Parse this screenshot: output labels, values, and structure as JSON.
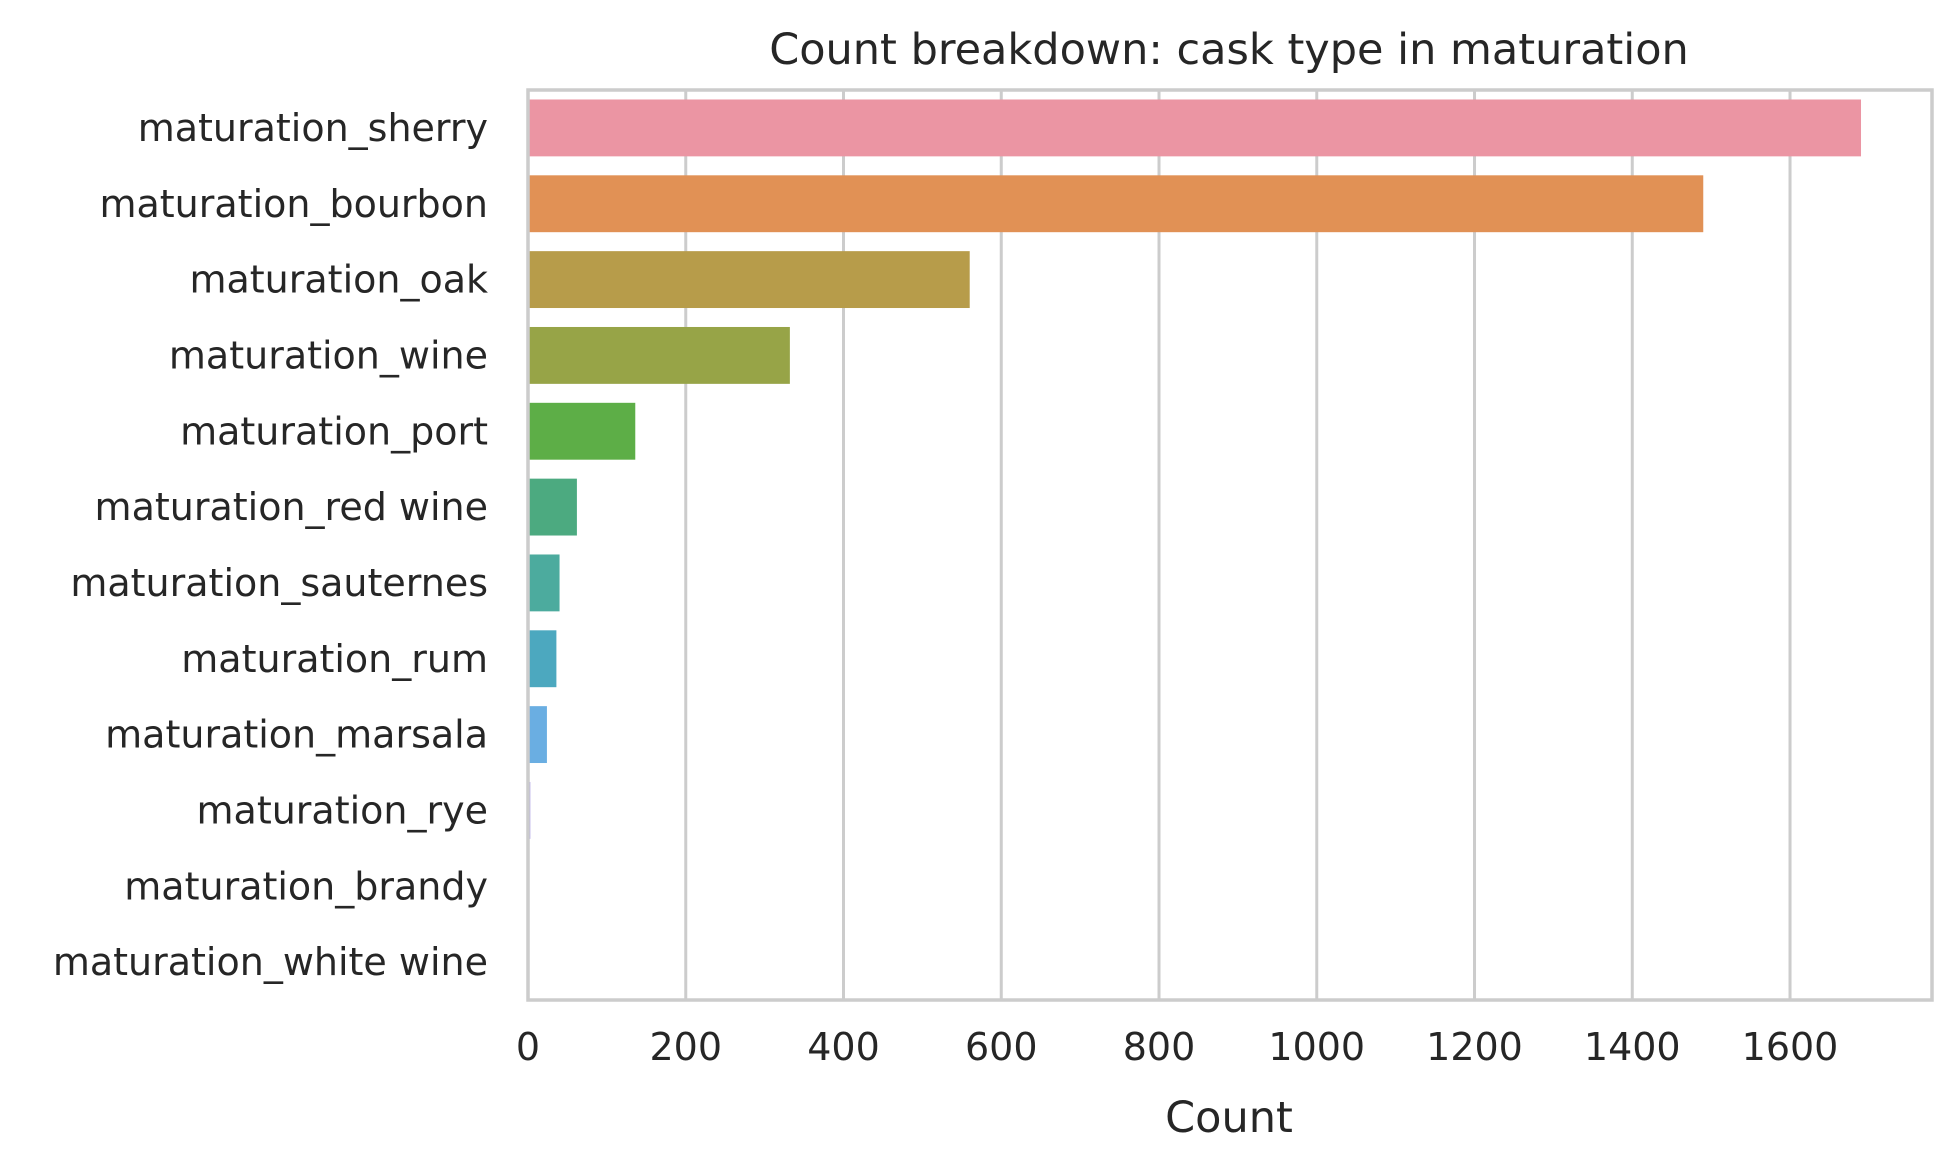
{
  "chart_data": {
    "type": "bar",
    "orientation": "horizontal",
    "title": "Count breakdown: cask type in maturation",
    "xlabel": "Count",
    "ylabel": "",
    "xlim": [
      0,
      1780
    ],
    "x_ticks": [
      0,
      200,
      400,
      600,
      800,
      1000,
      1200,
      1400,
      1600
    ],
    "grid": "vertical",
    "legend": "none",
    "categories": [
      "maturation_sherry",
      "maturation_bourbon",
      "maturation_oak",
      "maturation_wine",
      "maturation_port",
      "maturation_red wine",
      "maturation_sauternes",
      "maturation_rum",
      "maturation_marsala",
      "maturation_rye",
      "maturation_brandy",
      "maturation_white wine"
    ],
    "values": [
      1690,
      1490,
      560,
      332,
      136,
      62,
      40,
      36,
      24,
      3,
      0,
      0
    ],
    "colors": [
      "#eb95a3",
      "#e19155",
      "#b79c4a",
      "#97a447",
      "#5dae47",
      "#4caa80",
      "#4cab9e",
      "#4ca8bf",
      "#6aaee2",
      "#b6abe8",
      "#dca8e6",
      "#e8a4c8"
    ]
  }
}
